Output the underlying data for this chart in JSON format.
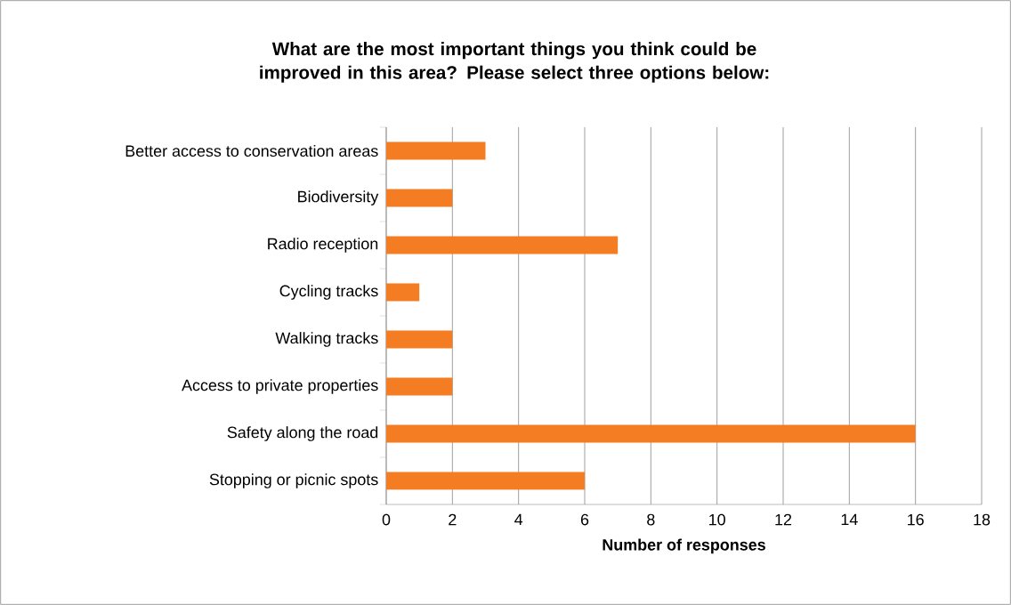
{
  "chart_data": {
    "type": "bar",
    "orientation": "horizontal",
    "title": "What are the most important things you think could be improved in this area? Please select three options below:",
    "xlabel": "Number of responses",
    "categories": [
      "Better access to conservation areas",
      "Biodiversity",
      "Radio reception",
      "Cycling tracks",
      "Walking tracks",
      "Access to private properties",
      "Safety along the road",
      "Stopping or picnic spots"
    ],
    "values": [
      3,
      2,
      7,
      1,
      2,
      2,
      16,
      6
    ],
    "color": "#f47d23",
    "xlim": [
      0,
      18
    ],
    "xticks": [
      0,
      2,
      4,
      6,
      8,
      10,
      12,
      14,
      16,
      18
    ],
    "grid": "x"
  }
}
